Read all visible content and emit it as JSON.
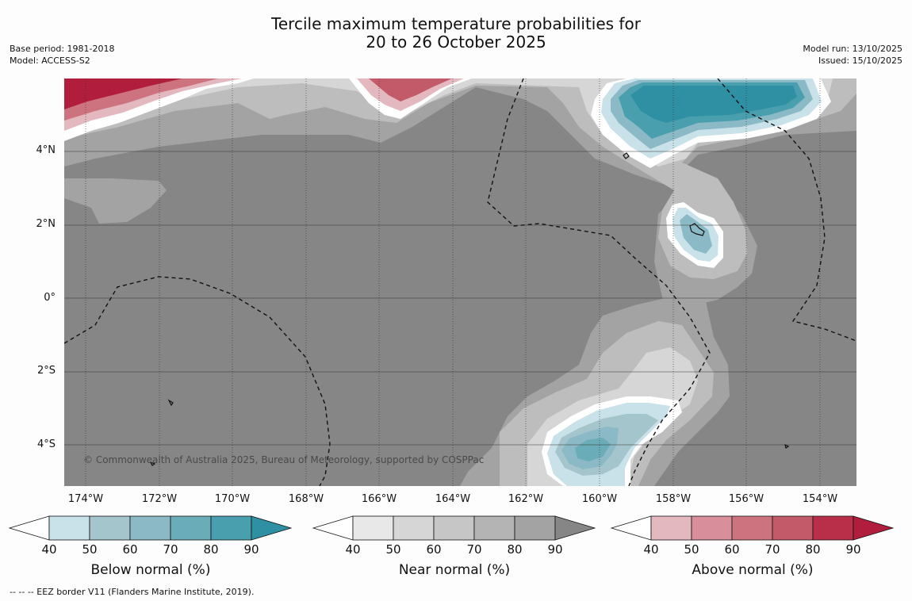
{
  "title": {
    "line1": "Tercile maximum temperature probabilities for",
    "line2": "20 to 26 October 2025"
  },
  "meta_left": {
    "base_period": "Base period: 1981-2018",
    "model": "Model: ACCESS-S2"
  },
  "meta_right": {
    "model_run": "Model run: 13/10/2025",
    "issued": "Issued: 15/10/2025"
  },
  "map": {
    "lat_labels": [
      "4°N",
      "2°N",
      "0°",
      "2°S",
      "4°S"
    ],
    "lon_labels": [
      "174°W",
      "172°W",
      "170°W",
      "168°W",
      "166°W",
      "164°W",
      "162°W",
      "160°W",
      "158°W",
      "156°W",
      "154°W"
    ],
    "copyright": "© Commonwealth of Australia 2025, Bureau of Meteorology, supported by COSPPac",
    "colors": {
      "base": "#868686",
      "near_60": "#a3a3a3",
      "near_50": "#bdbdbd",
      "near_40": "#d6d6d6",
      "below_40": "#c9e1e8",
      "below_50": "#a4c5cb",
      "below_60": "#8bb9c5",
      "below_70": "#6aadb8",
      "below_80": "#4a9fae",
      "below_90": "#2f8fa3",
      "above_40": "#e3b8bf",
      "above_50": "#d88f9b",
      "above_60": "#cd7380",
      "above_70": "#c35a69",
      "above_80": "#b92f49",
      "above_90": "#b11d3c"
    }
  },
  "colorbars": [
    {
      "title": "Below normal (%)",
      "ticks": [
        "40",
        "50",
        "60",
        "70",
        "80",
        "90"
      ],
      "colors": [
        "#c9e1e8",
        "#a4c5cb",
        "#8bb9c5",
        "#6aadb8",
        "#4a9fae",
        "#2f8fa3"
      ]
    },
    {
      "title": "Near normal (%)",
      "ticks": [
        "40",
        "50",
        "60",
        "70",
        "80",
        "90"
      ],
      "colors": [
        "#e8e8e8",
        "#d6d6d6",
        "#c6c6c6",
        "#b4b4b4",
        "#a3a3a3",
        "#868686"
      ]
    },
    {
      "title": "Above normal (%)",
      "ticks": [
        "40",
        "50",
        "60",
        "70",
        "80",
        "90"
      ],
      "colors": [
        "#e3b8bf",
        "#d88f9b",
        "#cd7380",
        "#c35a69",
        "#b92f49",
        "#b11d3c"
      ]
    }
  ],
  "footnote": "--  --  -- EEZ border V11 (Flanders Marine Institute, 2019)."
}
